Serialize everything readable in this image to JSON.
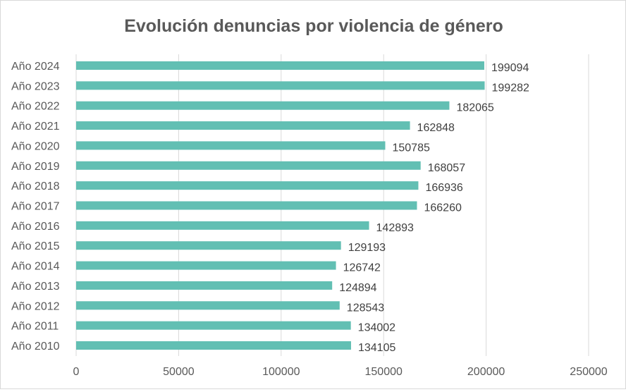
{
  "chart_data": {
    "type": "bar",
    "orientation": "horizontal",
    "title": "Evolución denuncias por violencia de género",
    "xlabel": "",
    "ylabel": "",
    "xlim": [
      0,
      250000
    ],
    "x_ticks": [
      "0",
      "50000",
      "100000",
      "150000",
      "200000",
      "250000"
    ],
    "x_tick_values": [
      0,
      50000,
      100000,
      150000,
      200000,
      250000
    ],
    "grid": true,
    "legend": "none",
    "bar_color": "#62BFB3",
    "categories": [
      "Año 2024",
      "Año 2023",
      "Año 2022",
      "Año 2021",
      "Año 2020",
      "Año 2019",
      "Año 2018",
      "Año 2017",
      "Año 2016",
      "Año 2015",
      "Año 2014",
      "Año 2013",
      "Año 2012",
      "Año 2011",
      "Año 2010"
    ],
    "values": [
      199094,
      199282,
      182065,
      162848,
      150785,
      168057,
      166936,
      166260,
      142893,
      129193,
      126742,
      124894,
      128543,
      134002,
      134105
    ],
    "data_labels": [
      "199094",
      "199282",
      "182065",
      "162848",
      "150785",
      "168057",
      "166936",
      "166260",
      "142893",
      "129193",
      "126742",
      "124894",
      "128543",
      "134002",
      "134105"
    ]
  }
}
